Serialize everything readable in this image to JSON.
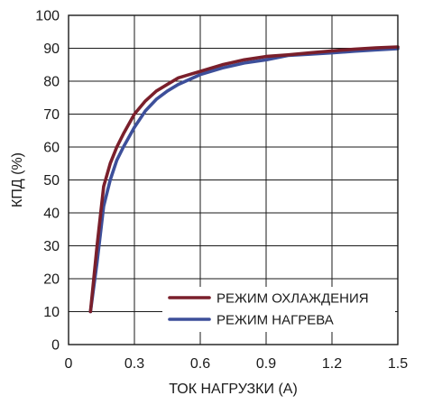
{
  "chart_data": {
    "type": "line",
    "xlabel": "ТОК НАГРУЗКИ (A)",
    "ylabel": "КПД (%)",
    "xlim": [
      0,
      1.5
    ],
    "ylim": [
      0,
      100
    ],
    "x_ticks": [
      "0",
      "0.3",
      "0.6",
      "0.9",
      "1.2",
      "1.5"
    ],
    "y_ticks": [
      "0",
      "10",
      "20",
      "30",
      "40",
      "50",
      "60",
      "70",
      "80",
      "90",
      "100"
    ],
    "grid": true,
    "legend_position": "bottom-right",
    "series": [
      {
        "name": "РЕЖИМ ОХЛАЖДЕНИЯ",
        "color": "#7a1f2b",
        "x": [
          0.1,
          0.13,
          0.16,
          0.19,
          0.22,
          0.25,
          0.3,
          0.35,
          0.4,
          0.45,
          0.5,
          0.55,
          0.6,
          0.7,
          0.8,
          0.9,
          1.0,
          1.1,
          1.2,
          1.3,
          1.4,
          1.5
        ],
        "y": [
          10,
          30,
          48,
          55,
          60,
          64,
          70,
          74,
          77,
          79,
          81,
          82,
          83,
          85,
          86.5,
          87.5,
          88,
          88.6,
          89.2,
          89.7,
          90.1,
          90.4
        ]
      },
      {
        "name": "РЕЖИМ НАГРЕВА",
        "color": "#3d4f9a",
        "x": [
          0.1,
          0.13,
          0.16,
          0.19,
          0.22,
          0.25,
          0.3,
          0.35,
          0.4,
          0.45,
          0.5,
          0.55,
          0.6,
          0.7,
          0.8,
          0.9,
          1.0,
          1.1,
          1.2,
          1.3,
          1.4,
          1.5
        ],
        "y": [
          10,
          25,
          42,
          50,
          56,
          60,
          66,
          71,
          74.5,
          77,
          79,
          80.5,
          82,
          84,
          85.5,
          86.5,
          87.8,
          88.2,
          88.6,
          89.1,
          89.5,
          89.9
        ]
      }
    ]
  }
}
